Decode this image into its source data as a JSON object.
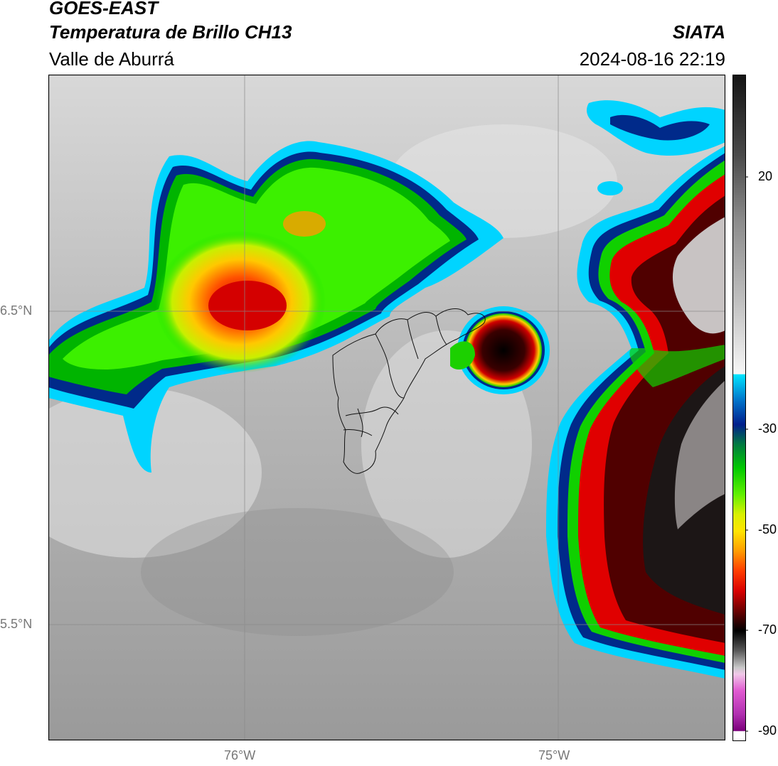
{
  "header": {
    "product": "GOES-EAST",
    "variable": "Temperatura de Brillo CH13",
    "region": "Valle de Aburrá",
    "organization": "SIATA",
    "timestamp": "2024-08-16 22:19"
  },
  "map": {
    "lat_labels": [
      "6.5°N",
      "5.5°N"
    ],
    "lon_labels": [
      "76°W",
      "75°W"
    ]
  },
  "colorbar": {
    "tick_labels": [
      "20",
      "-30",
      "-50",
      "-70",
      "-90"
    ],
    "colors": {
      "warm_gray": "#c8c8c8",
      "cyan": "#00d8ff",
      "navy": "#00208a",
      "green": "#00e400",
      "yellow": "#ffee00",
      "orange": "#ff8c00",
      "red": "#e00000",
      "dark_red": "#500000",
      "black": "#000000",
      "pink": "#e05ad0",
      "purple": "#7a007a"
    }
  }
}
